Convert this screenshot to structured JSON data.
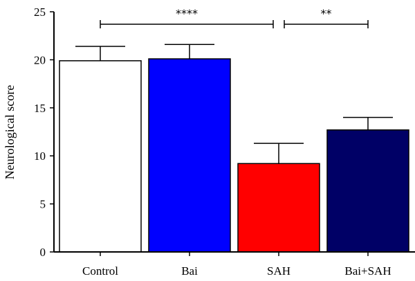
{
  "chart_data": {
    "type": "bar",
    "title": "",
    "xlabel": "",
    "ylabel": "Neurological score",
    "ylim": [
      0,
      25
    ],
    "yticks": [
      0,
      5,
      10,
      15,
      20,
      25
    ],
    "categories": [
      "Control",
      "Bai",
      "SAH",
      "Bai+SAH"
    ],
    "values": [
      19.9,
      20.1,
      9.2,
      12.7
    ],
    "error_upper": [
      1.5,
      1.5,
      2.1,
      1.3
    ],
    "colors": [
      "#ffffff",
      "#0000ff",
      "#ff0000",
      "#000066"
    ],
    "grid": false,
    "significance": [
      {
        "from": "Control",
        "to": "SAH",
        "label": "****"
      },
      {
        "from": "SAH",
        "to": "Bai+SAH",
        "label": "**"
      }
    ]
  }
}
